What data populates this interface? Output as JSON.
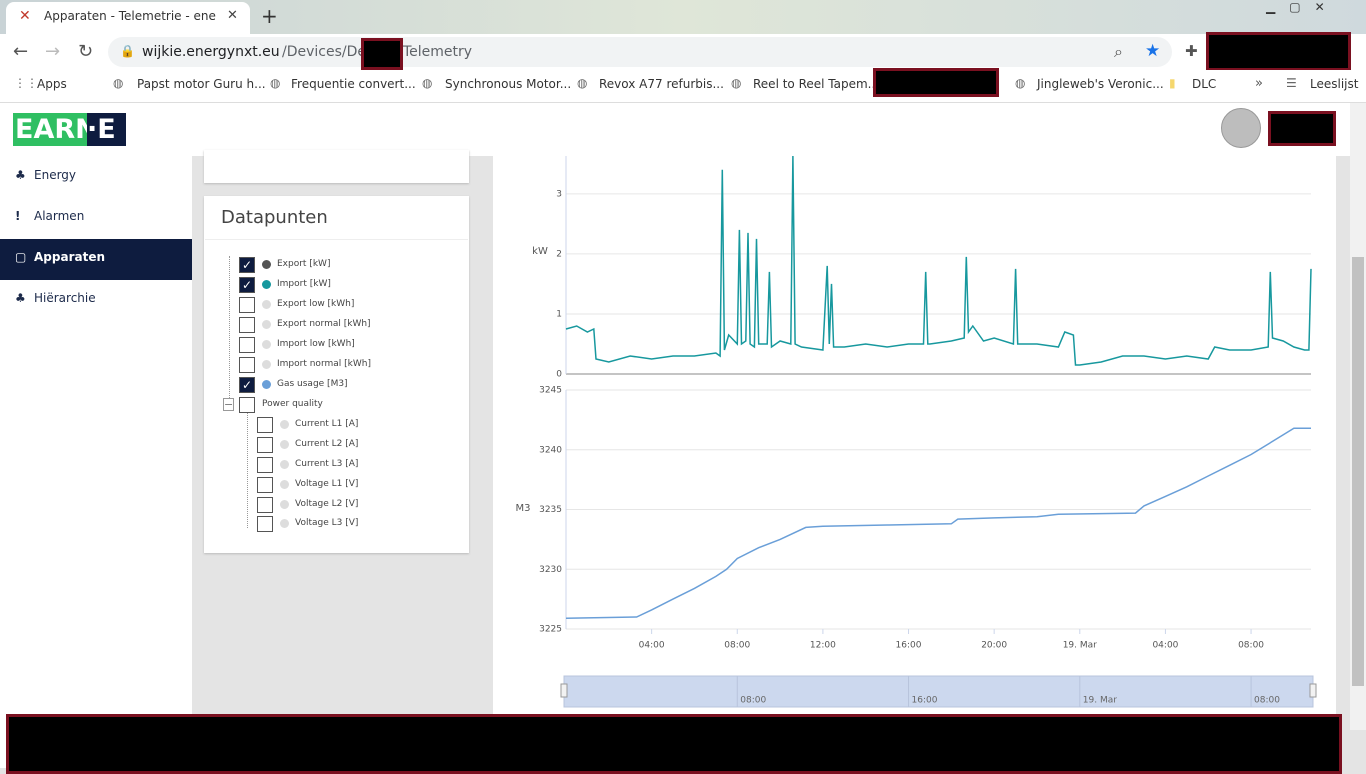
{
  "browser": {
    "tab_title": "Apparaten - Telemetrie - energy",
    "url_host": "wijkie.energynxt.eu",
    "url_path": "/Devices/Device",
    "url_tail": "Telemetry",
    "bookmarks": [
      "Apps",
      "Papst motor Guru h...",
      "Frequentie convert...",
      "Synchronous Motor...",
      "Revox A77 refurbis...",
      "Reel to Reel Tapem...",
      "Jingleweb's Veronic...",
      "DLC",
      "Leeslijst"
    ]
  },
  "app": {
    "logo": {
      "left": "EARN",
      "right": "·E"
    },
    "nav": [
      {
        "label": "Energy",
        "active": false
      },
      {
        "label": "Alarmen",
        "active": false
      },
      {
        "label": "Apparaten",
        "active": true
      },
      {
        "label": "Hiërarchie",
        "active": false
      }
    ]
  },
  "datapoints": {
    "title": "Datapunten",
    "items": [
      {
        "label": "Export [kW]",
        "checked": true,
        "color": "#555555"
      },
      {
        "label": "Import [kW]",
        "checked": true,
        "color": "#17989e"
      },
      {
        "label": "Export low [kWh]",
        "checked": false,
        "color": "#dddddd"
      },
      {
        "label": "Export normal [kWh]",
        "checked": false,
        "color": "#dddddd"
      },
      {
        "label": "Import low [kWh]",
        "checked": false,
        "color": "#dddddd"
      },
      {
        "label": "Import normal [kWh]",
        "checked": false,
        "color": "#dddddd"
      },
      {
        "label": "Gas usage [M3]",
        "checked": true,
        "color": "#6a9fd8"
      }
    ],
    "group": {
      "label": "Power quality",
      "checked": false,
      "items": [
        {
          "label": "Current L1 [A]",
          "checked": false,
          "color": "#dddddd"
        },
        {
          "label": "Current L2 [A]",
          "checked": false,
          "color": "#dddddd"
        },
        {
          "label": "Current L3 [A]",
          "checked": false,
          "color": "#dddddd"
        },
        {
          "label": "Voltage L1 [V]",
          "checked": false,
          "color": "#dddddd"
        },
        {
          "label": "Voltage L2 [V]",
          "checked": false,
          "color": "#dddddd"
        },
        {
          "label": "Voltage L3 [V]",
          "checked": false,
          "color": "#dddddd"
        }
      ]
    }
  },
  "charts": [
    {
      "type": "line",
      "y_label": "kW",
      "color": "#17989e",
      "xlim": [
        0,
        34.8
      ],
      "ylim": [
        0,
        3.63
      ],
      "yticks": [
        0,
        1,
        2,
        3
      ],
      "grid": true,
      "x": [
        0,
        0.5,
        1,
        1.3,
        1.4,
        2,
        3,
        4,
        5,
        6,
        7,
        7.2,
        7.3,
        7.4,
        7.6,
        8,
        8.1,
        8.2,
        8.4,
        8.5,
        8.6,
        8.8,
        8.9,
        9,
        9.4,
        9.5,
        9.6,
        10,
        10.5,
        10.6,
        10.7,
        11,
        12,
        12.2,
        12.3,
        12.4,
        12.5,
        13,
        14,
        15,
        16,
        16.7,
        16.8,
        16.9,
        17,
        18,
        18.6,
        18.7,
        18.8,
        19,
        19.5,
        20,
        20.9,
        21,
        21.1,
        22,
        23,
        23.3,
        23.7,
        23.8,
        24,
        25,
        26,
        27,
        28,
        29,
        30,
        30.3,
        31,
        32,
        32.8,
        32.9,
        33,
        33.5,
        34,
        34.5,
        34.7,
        34.8
      ],
      "values": [
        0.75,
        0.8,
        0.7,
        0.75,
        0.25,
        0.2,
        0.3,
        0.25,
        0.3,
        0.3,
        0.35,
        0.3,
        3.4,
        0.4,
        0.65,
        0.5,
        2.4,
        0.5,
        0.55,
        2.35,
        0.5,
        0.45,
        2.25,
        0.5,
        0.5,
        1.7,
        0.45,
        0.55,
        0.5,
        3.63,
        0.5,
        0.45,
        0.4,
        1.8,
        0.5,
        1.5,
        0.45,
        0.45,
        0.5,
        0.45,
        0.5,
        0.5,
        1.7,
        0.5,
        0.5,
        0.55,
        0.6,
        1.95,
        0.7,
        0.8,
        0.55,
        0.6,
        0.5,
        1.75,
        0.5,
        0.5,
        0.45,
        0.7,
        0.65,
        0.15,
        0.15,
        0.2,
        0.3,
        0.3,
        0.25,
        0.3,
        0.25,
        0.45,
        0.4,
        0.4,
        0.45,
        1.7,
        0.6,
        0.55,
        0.45,
        0.4,
        0.4,
        1.75
      ]
    },
    {
      "type": "line",
      "y_label": "M3",
      "color": "#6a9fd8",
      "xlim": [
        0,
        34.8
      ],
      "ylim": [
        3225,
        3245
      ],
      "yticks": [
        3225,
        3230,
        3235,
        3240,
        3245
      ],
      "grid": true,
      "xticks": [
        {
          "value": 4,
          "label": "04:00"
        },
        {
          "value": 8,
          "label": "08:00"
        },
        {
          "value": 12,
          "label": "12:00"
        },
        {
          "value": 16,
          "label": "16:00"
        },
        {
          "value": 20,
          "label": "20:00"
        },
        {
          "value": 24,
          "label": "19. Mar"
        },
        {
          "value": 28,
          "label": "04:00"
        },
        {
          "value": 32,
          "label": "08:00"
        }
      ],
      "x": [
        0,
        3.3,
        4,
        5,
        6,
        7,
        7.5,
        8,
        9,
        10,
        11.2,
        12,
        15,
        18,
        18.3,
        20,
        22,
        23,
        26.6,
        27,
        28,
        29,
        30,
        31,
        32,
        33,
        34,
        34.8
      ],
      "values": [
        3225.9,
        3226.0,
        3226.6,
        3227.5,
        3228.4,
        3229.4,
        3230.0,
        3230.9,
        3231.8,
        3232.5,
        3233.5,
        3233.6,
        3233.7,
        3233.8,
        3234.2,
        3234.3,
        3234.4,
        3234.6,
        3234.7,
        3235.3,
        3236.1,
        3236.9,
        3237.8,
        3238.7,
        3239.6,
        3240.7,
        3241.8,
        3241.8
      ]
    }
  ],
  "navigator": {
    "xlim": [
      0,
      34.8
    ],
    "xticks": [
      {
        "value": 8,
        "label": "08:00"
      },
      {
        "value": 16,
        "label": "16:00"
      },
      {
        "value": 24,
        "label": "19. Mar"
      },
      {
        "value": 32,
        "label": "08:00"
      }
    ]
  }
}
